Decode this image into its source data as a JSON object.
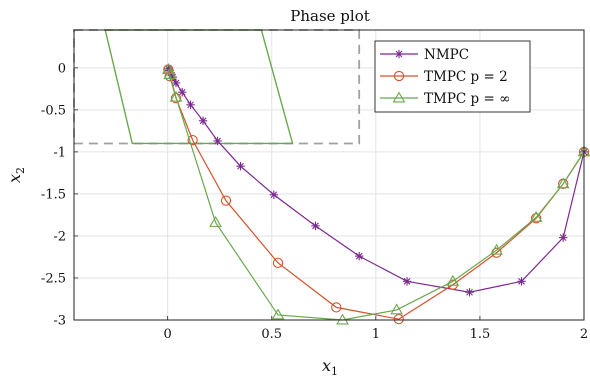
{
  "chart_data": {
    "type": "line",
    "title": "Phase plot",
    "xlabel": "x1",
    "ylabel": "x2",
    "xlim": [
      -0.45,
      2.0
    ],
    "ylim": [
      -3.0,
      0.45
    ],
    "xticks": [
      0,
      0.5,
      1,
      1.5,
      2
    ],
    "xtick_labels": [
      "0",
      "0.5",
      "1",
      "1.5",
      "2"
    ],
    "yticks": [
      0,
      -0.5,
      -1,
      -1.5,
      -2,
      -2.5,
      -3
    ],
    "ytick_labels": [
      "0",
      "-0.5",
      "-1",
      "-1.5",
      "-2",
      "-2.5",
      "-3"
    ],
    "grid": true,
    "legend_position": "top-right",
    "series": [
      {
        "name": "NMPC",
        "color": "#7b2a8f",
        "marker": "asterisk",
        "x": [
          2.0,
          1.9,
          1.7,
          1.45,
          1.15,
          0.92,
          0.71,
          0.51,
          0.35,
          0.24,
          0.17,
          0.11,
          0.07,
          0.04,
          0.025,
          0.015,
          0.008,
          0.004
        ],
        "y": [
          -1.0,
          -2.02,
          -2.54,
          -2.67,
          -2.54,
          -2.24,
          -1.88,
          -1.51,
          -1.17,
          -0.87,
          -0.63,
          -0.44,
          -0.29,
          -0.18,
          -0.11,
          -0.06,
          -0.03,
          -0.01
        ]
      },
      {
        "name": "TMPC p = 2",
        "color": "#d4522a",
        "marker": "circle",
        "x": [
          2.0,
          1.9,
          1.77,
          1.58,
          1.37,
          1.11,
          0.81,
          0.53,
          0.28,
          0.12,
          0.04,
          0.01,
          0.003
        ],
        "y": [
          -1.0,
          -1.38,
          -1.79,
          -2.2,
          -2.58,
          -2.99,
          -2.85,
          -2.32,
          -1.58,
          -0.86,
          -0.36,
          -0.1,
          -0.02
        ]
      },
      {
        "name": "TMPC p = ∞",
        "color": "#6aa84f",
        "marker": "triangle",
        "x": [
          2.0,
          1.9,
          1.77,
          1.58,
          1.37,
          1.1,
          0.84,
          0.53,
          0.23,
          0.04,
          0.01,
          0.003
        ],
        "y": [
          -1.0,
          -1.38,
          -1.78,
          -2.17,
          -2.54,
          -2.88,
          -3.0,
          -2.94,
          -1.84,
          -0.35,
          -0.08,
          -0.02
        ]
      }
    ],
    "terminal_set": {
      "color": "#6aa84f",
      "vertices": [
        [
          -0.3,
          0.45
        ],
        [
          0.45,
          0.45
        ],
        [
          0.6,
          -0.9
        ],
        [
          -0.17,
          -0.9
        ]
      ]
    },
    "inset_box": {
      "color": "#a0a0a0",
      "x_range": [
        -0.45,
        0.92
      ],
      "y_range": [
        -0.9,
        0.45
      ]
    }
  }
}
